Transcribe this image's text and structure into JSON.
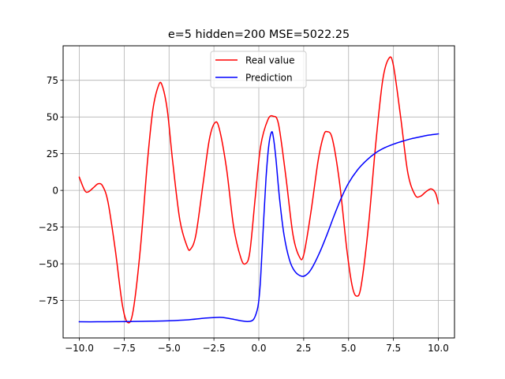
{
  "chart_data": {
    "type": "line",
    "title": "e=5 hidden=200 MSE=5022.25",
    "xlabel": "",
    "ylabel": "",
    "xlim": [
      -10.9,
      10.9
    ],
    "ylim": [
      -100.5,
      98.5
    ],
    "grid": true,
    "legend_position": "upper center",
    "x_ticks": [
      -10.0,
      -7.5,
      -5.0,
      -2.5,
      0.0,
      2.5,
      5.0,
      7.5,
      10.0
    ],
    "x_tick_labels": [
      "−10.0",
      "−7.5",
      "−5.0",
      "−2.5",
      "0.0",
      "2.5",
      "5.0",
      "7.5",
      "10.0"
    ],
    "y_ticks": [
      -75,
      -50,
      -25,
      0,
      25,
      50,
      75
    ],
    "y_tick_labels": [
      "−75",
      "−50",
      "−25",
      "0",
      "25",
      "50",
      "75"
    ],
    "series": [
      {
        "name": "Real value",
        "color": "#ff0000",
        "points": [
          [
            -10.0,
            9.0
          ],
          [
            -9.7,
            0.0
          ],
          [
            -9.5,
            -1.0
          ],
          [
            -9.2,
            2.0
          ],
          [
            -8.95,
            4.5
          ],
          [
            -8.7,
            3.0
          ],
          [
            -8.4,
            -8.0
          ],
          [
            -8.0,
            -40.0
          ],
          [
            -7.6,
            -78.0
          ],
          [
            -7.3,
            -90.0
          ],
          [
            -7.0,
            -82.0
          ],
          [
            -6.6,
            -40.0
          ],
          [
            -6.2,
            20.0
          ],
          [
            -5.9,
            55.0
          ],
          [
            -5.6,
            71.0
          ],
          [
            -5.4,
            72.0
          ],
          [
            -5.1,
            55.0
          ],
          [
            -4.8,
            20.0
          ],
          [
            -4.4,
            -20.0
          ],
          [
            -4.0,
            -38.0
          ],
          [
            -3.8,
            -40.0
          ],
          [
            -3.5,
            -30.0
          ],
          [
            -3.1,
            5.0
          ],
          [
            -2.75,
            35.0
          ],
          [
            -2.45,
            46.0
          ],
          [
            -2.2,
            42.0
          ],
          [
            -1.8,
            15.0
          ],
          [
            -1.4,
            -25.0
          ],
          [
            -1.0,
            -46.0
          ],
          [
            -0.75,
            -50.0
          ],
          [
            -0.5,
            -42.0
          ],
          [
            -0.2,
            -5.0
          ],
          [
            0.1,
            30.0
          ],
          [
            0.5,
            48.0
          ],
          [
            0.8,
            50.5
          ],
          [
            1.1,
            45.0
          ],
          [
            1.5,
            10.0
          ],
          [
            1.9,
            -30.0
          ],
          [
            2.25,
            -45.0
          ],
          [
            2.5,
            -44.0
          ],
          [
            2.9,
            -15.0
          ],
          [
            3.3,
            20.0
          ],
          [
            3.6,
            37.0
          ],
          [
            3.8,
            40.0
          ],
          [
            4.1,
            35.0
          ],
          [
            4.5,
            5.0
          ],
          [
            4.9,
            -40.0
          ],
          [
            5.2,
            -65.0
          ],
          [
            5.45,
            -72.0
          ],
          [
            5.7,
            -65.0
          ],
          [
            6.1,
            -25.0
          ],
          [
            6.5,
            30.0
          ],
          [
            6.9,
            75.0
          ],
          [
            7.25,
            90.0
          ],
          [
            7.5,
            85.0
          ],
          [
            7.9,
            50.0
          ],
          [
            8.3,
            12.0
          ],
          [
            8.7,
            -3.0
          ],
          [
            9.0,
            -4.0
          ],
          [
            9.3,
            -1.0
          ],
          [
            9.6,
            1.0
          ],
          [
            9.85,
            -2.0
          ],
          [
            10.0,
            -9.0
          ]
        ]
      },
      {
        "name": "Prediction",
        "color": "#0000ff",
        "points": [
          [
            -10.0,
            -89.5
          ],
          [
            -9.0,
            -89.5
          ],
          [
            -8.0,
            -89.4
          ],
          [
            -7.0,
            -89.3
          ],
          [
            -6.0,
            -89.1
          ],
          [
            -5.0,
            -88.8
          ],
          [
            -4.0,
            -88.2
          ],
          [
            -3.0,
            -87.0
          ],
          [
            -2.3,
            -86.5
          ],
          [
            -2.0,
            -86.6
          ],
          [
            -1.5,
            -87.6
          ],
          [
            -1.0,
            -88.8
          ],
          [
            -0.6,
            -89.3
          ],
          [
            -0.3,
            -88.0
          ],
          [
            -0.1,
            -82.0
          ],
          [
            0.0,
            -75.0
          ],
          [
            0.1,
            -60.0
          ],
          [
            0.25,
            -25.0
          ],
          [
            0.4,
            8.0
          ],
          [
            0.55,
            30.0
          ],
          [
            0.7,
            39.5
          ],
          [
            0.8,
            37.0
          ],
          [
            0.95,
            22.0
          ],
          [
            1.15,
            -5.0
          ],
          [
            1.4,
            -30.0
          ],
          [
            1.7,
            -47.0
          ],
          [
            2.0,
            -55.0
          ],
          [
            2.4,
            -58.5
          ],
          [
            2.7,
            -57.0
          ],
          [
            3.0,
            -52.0
          ],
          [
            3.4,
            -42.0
          ],
          [
            3.8,
            -30.0
          ],
          [
            4.2,
            -17.0
          ],
          [
            4.6,
            -5.0
          ],
          [
            5.0,
            5.0
          ],
          [
            5.5,
            14.0
          ],
          [
            6.0,
            20.5
          ],
          [
            6.5,
            25.5
          ],
          [
            7.0,
            29.0
          ],
          [
            7.5,
            31.5
          ],
          [
            8.0,
            33.5
          ],
          [
            8.5,
            35.2
          ],
          [
            9.0,
            36.5
          ],
          [
            9.5,
            37.7
          ],
          [
            10.0,
            38.5
          ]
        ]
      }
    ]
  }
}
